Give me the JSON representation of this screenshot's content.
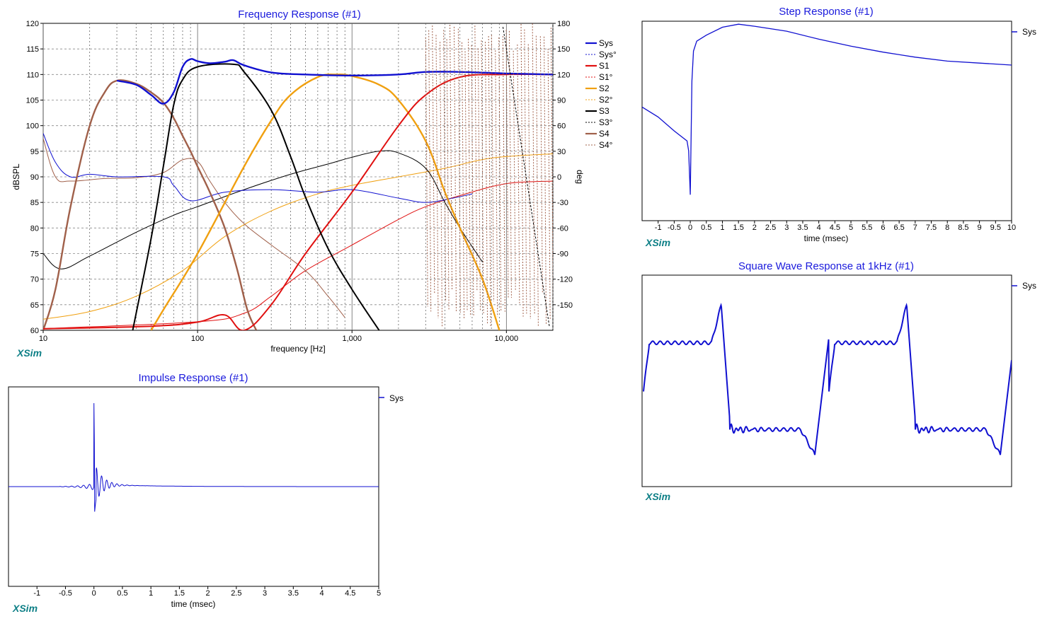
{
  "brand": "XSim",
  "colors": {
    "sys": "#1010d0",
    "s1": "#e01010",
    "s2": "#f0a010",
    "s3": "#000000",
    "s4": "#a0604a",
    "title": "#1a1adc",
    "brand": "#0d7f86"
  },
  "freq": {
    "title": "Frequency Response (#1)",
    "xlabel": "frequency [Hz]",
    "ylabel": "dBSPL",
    "y2label": "deg",
    "x_ticks": [
      "10",
      "100",
      "1,000",
      "10,000"
    ],
    "y_ticks": [
      "120",
      "115",
      "110",
      "105",
      "100",
      "95",
      "90",
      "85",
      "80",
      "75",
      "70",
      "65",
      "60"
    ],
    "y2_ticks": [
      "180",
      "150",
      "120",
      "90",
      "60",
      "30",
      "0",
      "-30",
      "-60",
      "-90",
      "-120",
      "-150"
    ],
    "legend": [
      "Sys",
      "Sys°",
      "S1",
      "S1°",
      "S2",
      "S2°",
      "S3",
      "S3°",
      "S4",
      "S4°"
    ]
  },
  "step": {
    "title": "Step Response (#1)",
    "xlabel": "time (msec)",
    "x_ticks": [
      "-1",
      "-0.5",
      "0",
      "0.5",
      "1",
      "1.5",
      "2",
      "2.5",
      "3",
      "3.5",
      "4",
      "4.5",
      "5",
      "5.5",
      "6",
      "6.5",
      "7",
      "7.5",
      "8",
      "8.5",
      "9",
      "9.5",
      "10"
    ],
    "legend": [
      "Sys"
    ]
  },
  "impulse": {
    "title": "Impulse Response (#1)",
    "xlabel": "time (msec)",
    "x_ticks": [
      "-1",
      "-0.5",
      "0",
      "0.5",
      "1",
      "1.5",
      "2",
      "2.5",
      "3",
      "3.5",
      "4",
      "4.5",
      "5"
    ],
    "legend": [
      "Sys"
    ]
  },
  "square": {
    "title": "Square Wave Response at 1kHz (#1)",
    "legend": [
      "Sys"
    ]
  },
  "chart_data": [
    {
      "type": "line",
      "title": "Frequency Response (#1)",
      "xlabel": "frequency [Hz]",
      "ylabel": "dBSPL",
      "y2label": "deg",
      "xscale": "log",
      "xlim": [
        10,
        20000
      ],
      "ylim": [
        60,
        120
      ],
      "y2lim": [
        -180,
        180
      ],
      "grid": true,
      "legend_position": "right",
      "series": [
        {
          "name": "Sys",
          "axis": "left",
          "points": [
            [
              30,
              108.8
            ],
            [
              40,
              108
            ],
            [
              50,
              106
            ],
            [
              60,
              104.3
            ],
            [
              70,
              106.5
            ],
            [
              80,
              111.5
            ],
            [
              90,
              113
            ],
            [
              100,
              112.6
            ],
            [
              120,
              112.2
            ],
            [
              150,
              112.5
            ],
            [
              170,
              112.8
            ],
            [
              200,
              111.8
            ],
            [
              300,
              110.4
            ],
            [
              500,
              110
            ],
            [
              1000,
              109.8
            ],
            [
              2000,
              110
            ],
            [
              3000,
              110.5
            ],
            [
              5000,
              110.5
            ],
            [
              10000,
              110.2
            ],
            [
              20000,
              110
            ]
          ]
        },
        {
          "name": "Sys°",
          "axis": "right",
          "points": [
            [
              10,
              51
            ],
            [
              12,
              17
            ],
            [
              15,
              0
            ],
            [
              20,
              3
            ],
            [
              30,
              0
            ],
            [
              60,
              0
            ],
            [
              70,
              -10
            ],
            [
              90,
              -28
            ],
            [
              150,
              -18
            ],
            [
              300,
              -15
            ],
            [
              600,
              -18
            ],
            [
              1000,
              -15
            ],
            [
              2000,
              -25
            ],
            [
              3000,
              -30
            ],
            [
              4500,
              -25
            ],
            [
              6000,
              -20
            ]
          ]
        },
        {
          "name": "S1",
          "axis": "left",
          "points": [
            [
              10,
              60.3
            ],
            [
              50,
              60.8
            ],
            [
              100,
              61.6
            ],
            [
              150,
              63
            ],
            [
              200,
              60
            ],
            [
              300,
              65
            ],
            [
              500,
              75
            ],
            [
              1000,
              87
            ],
            [
              2000,
              100
            ],
            [
              3000,
              106
            ],
            [
              5000,
              109.5
            ],
            [
              10000,
              110
            ],
            [
              20000,
              110
            ]
          ]
        },
        {
          "name": "S1°",
          "axis": "right",
          "points": [
            [
              10,
              -178
            ],
            [
              100,
              -170
            ],
            [
              200,
              -160
            ],
            [
              300,
              -140
            ],
            [
              500,
              -110
            ],
            [
              1000,
              -80
            ],
            [
              2000,
              -50
            ],
            [
              3000,
              -35
            ],
            [
              5000,
              -22
            ],
            [
              10000,
              -8
            ],
            [
              20000,
              -5
            ]
          ]
        },
        {
          "name": "S2",
          "axis": "left",
          "points": [
            [
              50,
              60
            ],
            [
              60,
              64
            ],
            [
              100,
              75
            ],
            [
              200,
              92
            ],
            [
              300,
              101
            ],
            [
              400,
              106
            ],
            [
              600,
              109.5
            ],
            [
              800,
              110
            ],
            [
              1000,
              109.7
            ],
            [
              1500,
              108
            ],
            [
              2000,
              105
            ],
            [
              3000,
              97
            ],
            [
              4000,
              87
            ],
            [
              5000,
              80
            ],
            [
              7000,
              70
            ],
            [
              9000,
              60
            ]
          ]
        },
        {
          "name": "S2°",
          "axis": "right",
          "points": [
            [
              10,
              -167
            ],
            [
              20,
              -158
            ],
            [
              40,
              -140
            ],
            [
              80,
              -110
            ],
            [
              150,
              -70
            ],
            [
              300,
              -40
            ],
            [
              600,
              -20
            ],
            [
              1000,
              -10
            ],
            [
              2000,
              0
            ],
            [
              4000,
              10
            ],
            [
              8000,
              22
            ],
            [
              20000,
              27
            ]
          ]
        },
        {
          "name": "S3",
          "axis": "left",
          "points": [
            [
              38,
              60
            ],
            [
              50,
              78
            ],
            [
              60,
              92
            ],
            [
              70,
              104
            ],
            [
              80,
              109
            ],
            [
              100,
              111.5
            ],
            [
              170,
              112
            ],
            [
              200,
              110.5
            ],
            [
              300,
              103
            ],
            [
              400,
              94
            ],
            [
              500,
              86
            ],
            [
              700,
              76
            ],
            [
              1000,
              68
            ],
            [
              1500,
              60
            ]
          ]
        },
        {
          "name": "S3°",
          "axis": "right",
          "points": [
            [
              10,
              -90
            ],
            [
              13,
              -108
            ],
            [
              20,
              -93
            ],
            [
              40,
              -65
            ],
            [
              70,
              -45
            ],
            [
              100,
              -35
            ],
            [
              200,
              -15
            ],
            [
              400,
              3
            ],
            [
              700,
              15
            ],
            [
              1000,
              23
            ],
            [
              1500,
              30
            ],
            [
              2000,
              28
            ],
            [
              3000,
              10
            ],
            [
              4000,
              -30
            ],
            [
              5000,
              -60
            ],
            [
              7000,
              -100
            ]
          ]
        },
        {
          "name": "S4",
          "axis": "left",
          "points": [
            [
              10,
              60
            ],
            [
              12,
              68
            ],
            [
              15,
              84
            ],
            [
              20,
              100
            ],
            [
              25,
              106.5
            ],
            [
              30,
              108.8
            ],
            [
              40,
              108.2
            ],
            [
              50,
              106.5
            ],
            [
              60,
              104.5
            ],
            [
              70,
              101.5
            ],
            [
              80,
              98
            ],
            [
              90,
              95
            ],
            [
              100,
              92
            ],
            [
              120,
              87
            ],
            [
              150,
              80
            ],
            [
              180,
              72
            ],
            [
              210,
              64
            ],
            [
              240,
              60
            ]
          ]
        },
        {
          "name": "S4°",
          "axis": "right",
          "points": [
            [
              10,
              45
            ],
            [
              12,
              0
            ],
            [
              15,
              -5
            ],
            [
              25,
              -2
            ],
            [
              40,
              -1
            ],
            [
              60,
              5
            ],
            [
              80,
              20
            ],
            [
              100,
              18
            ],
            [
              120,
              -5
            ],
            [
              150,
              -30
            ],
            [
              200,
              -55
            ],
            [
              300,
              -80
            ],
            [
              500,
              -110
            ],
            [
              700,
              -140
            ],
            [
              900,
              -165
            ]
          ]
        }
      ]
    },
    {
      "type": "line",
      "title": "Step Response (#1)",
      "xlabel": "time (msec)",
      "xlim": [
        -1.5,
        10
      ],
      "series": [
        {
          "name": "Sys",
          "points": [
            [
              -1.5,
              0.57
            ],
            [
              -1,
              0.52
            ],
            [
              -0.5,
              0.45
            ],
            [
              -0.1,
              0.4
            ],
            [
              -0.05,
              0.35
            ],
            [
              0,
              0.13
            ],
            [
              0.05,
              0.7
            ],
            [
              0.1,
              0.85
            ],
            [
              0.2,
              0.9
            ],
            [
              0.5,
              0.93
            ],
            [
              1,
              0.97
            ],
            [
              1.5,
              0.985
            ],
            [
              2,
              0.975
            ],
            [
              3,
              0.95
            ],
            [
              4,
              0.91
            ],
            [
              5,
              0.875
            ],
            [
              6,
              0.845
            ],
            [
              7,
              0.82
            ],
            [
              8,
              0.8
            ],
            [
              9,
              0.79
            ],
            [
              10,
              0.78
            ]
          ]
        }
      ]
    },
    {
      "type": "line",
      "title": "Impulse Response (#1)",
      "xlabel": "time (msec)",
      "xlim": [
        -1.5,
        5
      ],
      "series": [
        {
          "name": "Sys",
          "points": [
            [
              -1.5,
              0
            ],
            [
              -0.5,
              0
            ],
            [
              -0.2,
              0.02
            ],
            [
              -0.05,
              -0.1
            ],
            [
              0,
              1
            ],
            [
              0.03,
              -0.25
            ],
            [
              0.1,
              0.18
            ],
            [
              0.2,
              0.08
            ],
            [
              0.3,
              0.04
            ],
            [
              0.5,
              0.02
            ],
            [
              1.5,
              0.005
            ],
            [
              5,
              0
            ]
          ]
        }
      ]
    },
    {
      "type": "line",
      "title": "Square Wave Response at 1kHz (#1)",
      "series": [
        {
          "name": "Sys",
          "points": [
            [
              0,
              0.45
            ],
            [
              0.1,
              0.68
            ],
            [
              0.2,
              0.7
            ],
            [
              0.4,
              0.7
            ],
            [
              0.45,
              0.85
            ],
            [
              0.48,
              0.5
            ],
            [
              0.5,
              0.3
            ],
            [
              0.55,
              0.25
            ],
            [
              0.7,
              0.27
            ],
            [
              0.95,
              0.15
            ],
            [
              1.0,
              0.55
            ],
            [
              1.05,
              0.68
            ],
            [
              1.4,
              0.7
            ],
            [
              1.45,
              0.85
            ],
            [
              1.5,
              0.3
            ],
            [
              1.7,
              0.27
            ],
            [
              1.95,
              0.15
            ],
            [
              2.0,
              0.55
            ]
          ]
        }
      ]
    }
  ]
}
